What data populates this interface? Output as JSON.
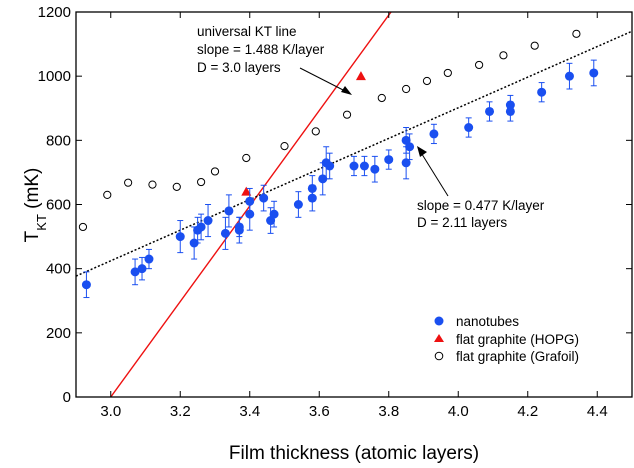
{
  "chart_data": {
    "type": "scatter",
    "xlabel": "Film thickness (atomic layers)",
    "ylabel_main": "T",
    "ylabel_sub": "KT",
    "ylabel_unit": " (mK)",
    "xlim": [
      2.9,
      4.5
    ],
    "ylim": [
      0,
      1200
    ],
    "xticks": [
      3.0,
      3.2,
      3.4,
      3.6,
      3.8,
      4.0,
      4.2,
      4.4
    ],
    "xtick_labels": [
      "3.0",
      "3.2",
      "3.4",
      "3.6",
      "3.8",
      "4.0",
      "4.2",
      "4.4"
    ],
    "yticks": [
      0,
      200,
      400,
      600,
      800,
      1000,
      1200
    ],
    "ytick_labels": [
      "0",
      "200",
      "400",
      "600",
      "800",
      "1000",
      "1200"
    ],
    "grid": false,
    "legend_position": "bottom-right",
    "colors": {
      "nanotubes": "#1a4ff0",
      "hopg": "#ee1111",
      "kt_line": "#ee1111",
      "fit_line": "#000000"
    },
    "series": [
      {
        "name": "nanotubes",
        "marker": "filled-circle",
        "points": [
          {
            "x": 2.93,
            "y": 350,
            "err": 40
          },
          {
            "x": 3.07,
            "y": 390,
            "err": 40
          },
          {
            "x": 3.09,
            "y": 400,
            "err": 35
          },
          {
            "x": 3.11,
            "y": 430,
            "err": 30
          },
          {
            "x": 3.2,
            "y": 500,
            "err": 50
          },
          {
            "x": 3.24,
            "y": 480,
            "err": 50
          },
          {
            "x": 3.25,
            "y": 520,
            "err": 40
          },
          {
            "x": 3.26,
            "y": 530,
            "err": 40
          },
          {
            "x": 3.28,
            "y": 550,
            "err": 50
          },
          {
            "x": 3.33,
            "y": 510,
            "err": 50
          },
          {
            "x": 3.34,
            "y": 580,
            "err": 50
          },
          {
            "x": 3.37,
            "y": 520,
            "err": 40
          },
          {
            "x": 3.37,
            "y": 530,
            "err": 30
          },
          {
            "x": 3.4,
            "y": 570,
            "err": 50
          },
          {
            "x": 3.4,
            "y": 610,
            "err": 40
          },
          {
            "x": 3.44,
            "y": 620,
            "err": 40
          },
          {
            "x": 3.46,
            "y": 550,
            "err": 40
          },
          {
            "x": 3.47,
            "y": 570,
            "err": 40
          },
          {
            "x": 3.54,
            "y": 600,
            "err": 40
          },
          {
            "x": 3.58,
            "y": 620,
            "err": 40
          },
          {
            "x": 3.58,
            "y": 650,
            "err": 40
          },
          {
            "x": 3.61,
            "y": 680,
            "err": 50
          },
          {
            "x": 3.62,
            "y": 730,
            "err": 50
          },
          {
            "x": 3.63,
            "y": 720,
            "err": 40
          },
          {
            "x": 3.7,
            "y": 720,
            "err": 30
          },
          {
            "x": 3.73,
            "y": 720,
            "err": 30
          },
          {
            "x": 3.76,
            "y": 710,
            "err": 40
          },
          {
            "x": 3.8,
            "y": 740,
            "err": 30
          },
          {
            "x": 3.85,
            "y": 730,
            "err": 50
          },
          {
            "x": 3.85,
            "y": 800,
            "err": 40
          },
          {
            "x": 3.86,
            "y": 780,
            "err": 40
          },
          {
            "x": 3.93,
            "y": 820,
            "err": 30
          },
          {
            "x": 4.03,
            "y": 840,
            "err": 30
          },
          {
            "x": 4.09,
            "y": 890,
            "err": 30
          },
          {
            "x": 4.15,
            "y": 890,
            "err": 30
          },
          {
            "x": 4.15,
            "y": 910,
            "err": 30
          },
          {
            "x": 4.24,
            "y": 950,
            "err": 30
          },
          {
            "x": 4.32,
            "y": 1000,
            "err": 40
          },
          {
            "x": 4.39,
            "y": 1010,
            "err": 40
          }
        ]
      },
      {
        "name": "flat graphite (HOPG)",
        "marker": "filled-triangle",
        "points": [
          {
            "x": 3.39,
            "y": 640
          },
          {
            "x": 3.72,
            "y": 1000
          }
        ]
      },
      {
        "name": "flat graphite (Grafoil)",
        "marker": "open-circle",
        "points": [
          {
            "x": 2.92,
            "y": 530
          },
          {
            "x": 2.99,
            "y": 630
          },
          {
            "x": 3.05,
            "y": 668
          },
          {
            "x": 3.12,
            "y": 662
          },
          {
            "x": 3.19,
            "y": 655
          },
          {
            "x": 3.26,
            "y": 670
          },
          {
            "x": 3.3,
            "y": 703
          },
          {
            "x": 3.39,
            "y": 745
          },
          {
            "x": 3.5,
            "y": 782
          },
          {
            "x": 3.59,
            "y": 828
          },
          {
            "x": 3.68,
            "y": 880
          },
          {
            "x": 3.78,
            "y": 932
          },
          {
            "x": 3.85,
            "y": 960
          },
          {
            "x": 3.91,
            "y": 985
          },
          {
            "x": 3.97,
            "y": 1010
          },
          {
            "x": 4.06,
            "y": 1035
          },
          {
            "x": 4.13,
            "y": 1065
          },
          {
            "x": 4.22,
            "y": 1095
          },
          {
            "x": 4.34,
            "y": 1132
          }
        ]
      }
    ],
    "lines": [
      {
        "name": "universal KT line",
        "style": "solid",
        "slope": 1.488,
        "x_intercept": 3.0
      },
      {
        "name": "fit",
        "style": "dotted",
        "slope": 0.477,
        "x_intercept": 2.11
      }
    ],
    "annotations": {
      "kt": [
        "universal KT line",
        "slope = 1.488 K/layer",
        "D = 3.0 layers"
      ],
      "fit": [
        "slope = 0.477 K/layer",
        "D = 2.11 layers"
      ]
    },
    "legend": [
      "nanotubes",
      "flat graphite (HOPG)",
      "flat graphite (Grafoil)"
    ]
  }
}
